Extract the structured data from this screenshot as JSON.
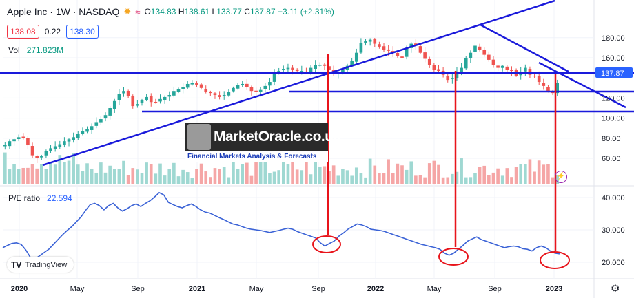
{
  "header": {
    "symbol": "Apple Inc · 1W · NASDAQ",
    "open_label": "O",
    "open": "134.83",
    "high_label": "H",
    "high": "138.61",
    "low_label": "L",
    "low": "133.77",
    "close_label": "C",
    "close": "137.87",
    "change": "+3.11 (+2.31%)",
    "sun_icon": "sun-icon",
    "wave_icon": "wave-icon"
  },
  "quote": {
    "bid": "138.08",
    "spread": "0.22",
    "ask": "138.30"
  },
  "volume": {
    "label": "Vol",
    "value": "271.823M"
  },
  "pe": {
    "label": "P/E ratio",
    "value": "22.594"
  },
  "watermark": {
    "name": "MarketOracle.co.uk",
    "subtitle": "Financial Markets Analysis & Forecasts"
  },
  "tradingview": {
    "logo": "TV",
    "label": "TradingView"
  },
  "colors": {
    "up": "#26a69a",
    "down": "#ef5350",
    "trendline": "#1a1adb",
    "marker": "#e8141b",
    "pe_line": "#3a62d6",
    "last_price_tag": "#2962ff"
  },
  "chart_data": [
    {
      "type": "candlestick",
      "title": "Apple Inc · 1W · NASDAQ",
      "x_tick_labels": [
        "2020",
        "May",
        "Sep",
        "2021",
        "May",
        "Sep",
        "2022",
        "May",
        "Sep",
        "2023"
      ],
      "x_range": [
        "2020-01",
        "2023-02"
      ],
      "y_tick_labels": [
        "60.00",
        "80.00",
        "100.00",
        "120.00",
        "160.00",
        "180.00"
      ],
      "ylim": [
        48,
        193
      ],
      "last_price_label": "137.87",
      "series": [
        {
          "name": "Apple Inc",
          "weekly_close_approx": [
            73,
            77,
            79,
            81,
            80,
            73,
            63,
            60,
            62,
            67,
            70,
            72,
            74,
            77,
            79,
            81,
            84,
            87,
            89,
            92,
            96,
            99,
            103,
            110,
            117,
            124,
            127,
            122,
            112,
            114,
            118,
            121,
            116,
            116,
            119,
            121,
            123,
            127,
            129,
            131,
            134,
            135,
            133,
            130,
            126,
            125,
            123,
            121,
            123,
            126,
            130,
            133,
            134,
            131,
            127,
            126,
            128,
            132,
            136,
            144,
            147,
            149,
            150,
            148,
            147,
            147,
            146,
            150,
            153,
            153,
            152,
            148,
            144,
            145,
            148,
            152,
            157,
            165,
            175,
            177,
            178,
            174,
            171,
            168,
            167,
            165,
            162,
            160,
            170,
            174,
            172,
            165,
            159,
            153,
            148,
            147,
            143,
            138,
            140,
            146,
            150,
            160,
            165,
            172,
            168,
            163,
            158,
            153,
            150,
            152,
            148,
            147,
            142,
            146,
            150,
            143,
            142,
            136,
            132,
            127,
            125,
            135
          ]
        }
      ]
    },
    {
      "type": "bar",
      "title": "Vol",
      "series": [
        {
          "name": "Vol",
          "values": []
        }
      ]
    },
    {
      "type": "line",
      "title": "P/E ratio",
      "x_tick_labels": [
        "2020",
        "May",
        "Sep",
        "2021",
        "May",
        "Sep",
        "2022",
        "May",
        "Sep",
        "2023"
      ],
      "y_tick_labels": [
        "20.000",
        "30.000",
        "40.000"
      ],
      "ylim": [
        17,
        45
      ],
      "series": [
        {
          "name": "P/E ratio",
          "values": [
            24.5,
            25.2,
            25.8,
            26,
            25.5,
            23.8,
            21.5,
            21,
            22,
            23,
            24,
            25.5,
            27,
            28.5,
            29.8,
            31,
            32.5,
            34,
            36,
            37.8,
            38.2,
            37.5,
            36.2,
            37.5,
            38.2,
            36.8,
            35.8,
            36.5,
            37.5,
            38,
            37.2,
            38.2,
            39,
            40.2,
            41.5,
            40.8,
            38.5,
            37.8,
            37.2,
            36.8,
            37.5,
            38,
            37.2,
            36.2,
            35.5,
            35.2,
            34.5,
            33.8,
            33.2,
            32.5,
            31.8,
            31.5,
            31,
            30.5,
            30.2,
            30,
            29.8,
            29.5,
            29.2,
            29.5,
            29.8,
            30.2,
            30.5,
            30.2,
            29.5,
            29,
            28.5,
            28,
            27.5,
            26,
            25,
            25.8,
            26.5,
            28,
            29,
            30.2,
            31,
            31.8,
            31.5,
            31,
            30.2,
            30,
            29.8,
            29.5,
            29,
            28.5,
            28,
            27.5,
            27,
            26.5,
            26,
            25.5,
            25.2,
            24.8,
            24.5,
            24,
            22.8,
            22.2,
            22.8,
            24,
            25.2,
            26.5,
            27.2,
            27.8,
            27,
            26.5,
            26,
            25.5,
            25,
            24.5,
            24.8,
            25,
            24.8,
            24.2,
            24,
            23.5,
            24.5,
            25,
            24.5,
            23.5,
            22.8,
            22.6
          ]
        }
      ]
    }
  ]
}
